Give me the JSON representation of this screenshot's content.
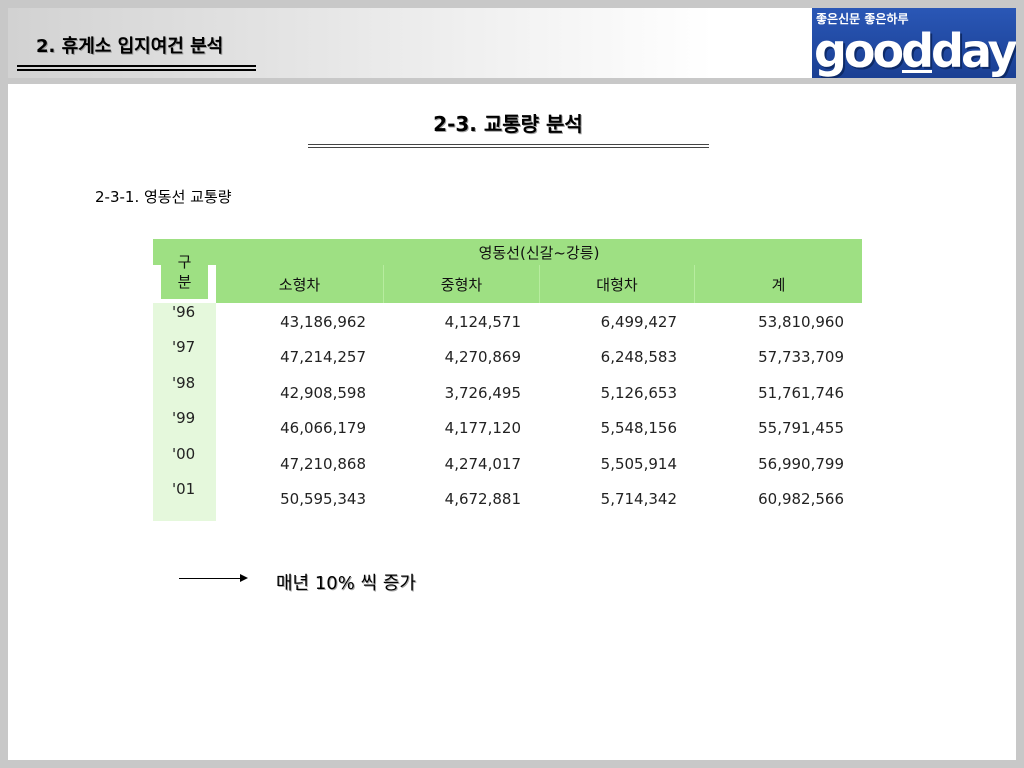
{
  "header": {
    "section_title": "2. 휴게소 입지여건 분석",
    "logo": {
      "tagline": "좋은신문 좋은하루",
      "wordmark": "goodday",
      "colors": {
        "background": "#1f4aa6",
        "text": "#ffffff"
      }
    }
  },
  "main": {
    "page_title": "2-3. 교통량 분석",
    "subsection_title": "2-3-1. 영동선 교통량"
  },
  "table": {
    "row_header_label": "구\n분",
    "group_header": "영동선(신갈~강릉)",
    "columns": [
      "소형차",
      "중형차",
      "대형차",
      "계"
    ],
    "rows": [
      {
        "year": "'96",
        "values": [
          "43,186,962",
          "4,124,571",
          "6,499,427",
          "53,810,960"
        ]
      },
      {
        "year": "'97",
        "values": [
          "47,214,257",
          "4,270,869",
          "6,248,583",
          "57,733,709"
        ]
      },
      {
        "year": "'98",
        "values": [
          "42,908,598",
          "3,726,495",
          "5,126,653",
          "51,761,746"
        ]
      },
      {
        "year": "'99",
        "values": [
          "46,066,179",
          "4,177,120",
          "5,548,156",
          "55,791,455"
        ]
      },
      {
        "year": "'00",
        "values": [
          "47,210,868",
          "4,274,017",
          "5,505,914",
          "56,990,799"
        ]
      },
      {
        "year": "'01",
        "values": [
          "50,595,343",
          "4,672,881",
          "5,714,342",
          "60,982,566"
        ]
      }
    ],
    "colors": {
      "header_green": "#9ee083",
      "row_header_bg": "#e5f8dc"
    }
  },
  "note": {
    "arrow_icon": "right-arrow-icon",
    "text": "매년 10% 씩 증가"
  }
}
